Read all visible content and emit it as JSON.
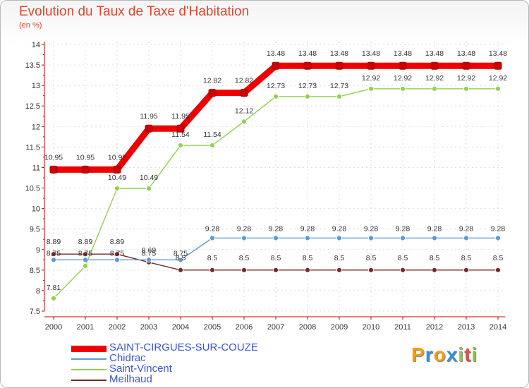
{
  "chart_data": {
    "type": "line",
    "title": "Evolution du Taux de Taxe d'Habitation",
    "ylabel": "(en %)",
    "xlabel": "",
    "categories": [
      "2000",
      "2001",
      "2002",
      "2003",
      "2004",
      "2005",
      "2006",
      "2007",
      "2008",
      "2009",
      "2010",
      "2011",
      "2012",
      "2013",
      "2014"
    ],
    "ylim": [
      7.5,
      14
    ],
    "yticks": [
      "7.5",
      "8",
      "8.5",
      "9",
      "9.5",
      "10",
      "10.5",
      "11",
      "11.5",
      "12",
      "12.5",
      "13",
      "13.5",
      "14"
    ],
    "legend_position": "bottom-left",
    "series": [
      {
        "name": "SAINT-CIRGUES-SUR-COUZE",
        "color": "#ee0000",
        "width": "thick",
        "values": [
          10.95,
          10.95,
          10.95,
          11.95,
          11.95,
          12.82,
          12.82,
          13.48,
          13.48,
          13.48,
          13.48,
          13.48,
          13.48,
          13.48,
          13.48
        ],
        "labels": [
          "10.95",
          "10.95",
          "10.95",
          "11.95",
          "11.95",
          "12.82",
          "12.82",
          "13.48",
          "13.48",
          "13.48",
          "13.48",
          "13.48",
          "13.48",
          "13.48",
          "13.48"
        ]
      },
      {
        "name": "Chidrac",
        "color": "#5b9bd5",
        "width": "thin",
        "values": [
          8.75,
          8.75,
          8.75,
          8.75,
          8.75,
          9.28,
          9.28,
          9.28,
          9.28,
          9.28,
          9.28,
          9.28,
          9.28,
          9.28,
          9.28
        ],
        "labels": [
          "8.75",
          "8.75",
          "8.75",
          "8.75",
          "8.75",
          "9.28",
          "9.28",
          "9.28",
          "9.28",
          "9.28",
          "9.28",
          "9.28",
          "9.28",
          "9.28",
          "9.28"
        ]
      },
      {
        "name": "Saint-Vincent",
        "color": "#92d050",
        "width": "thin",
        "values": [
          7.81,
          8.6,
          10.49,
          10.49,
          11.54,
          11.54,
          12.12,
          12.73,
          12.73,
          12.73,
          12.92,
          12.92,
          12.92,
          12.92,
          12.92
        ],
        "labels": [
          "7.81",
          "",
          "10.49",
          "10.49",
          "11.54",
          "11.54",
          "12.12",
          "12.73",
          "12.73",
          "12.73",
          "12.92",
          "12.92",
          "12.92",
          "12.92",
          "12.92"
        ]
      },
      {
        "name": "Meilhaud",
        "color": "#7a2828",
        "width": "thin",
        "values": [
          8.89,
          8.89,
          8.89,
          8.69,
          8.5,
          8.5,
          8.5,
          8.5,
          8.5,
          8.5,
          8.5,
          8.5,
          8.5,
          8.5,
          8.5
        ],
        "labels": [
          "8.89",
          "8.89",
          "8.89",
          "8.69",
          "8.5",
          "8.5",
          "8.5",
          "8.5",
          "8.5",
          "8.5",
          "8.5",
          "8.5",
          "8.5",
          "8.5",
          "8.5"
        ]
      }
    ]
  },
  "legend": {
    "items": [
      "SAINT-CIRGUES-SUR-COUZE",
      "Chidrac",
      "Saint-Vincent",
      "Meilhaud"
    ]
  },
  "logo": {
    "letters": [
      "P",
      "r",
      "o",
      "x",
      "i",
      "t",
      "i"
    ],
    "colors": [
      "#f39c12",
      "#3a8fd8",
      "#f39c12",
      "#3a8fd8",
      "#8cc63f",
      "#e74c3c",
      "#8cc63f"
    ]
  }
}
